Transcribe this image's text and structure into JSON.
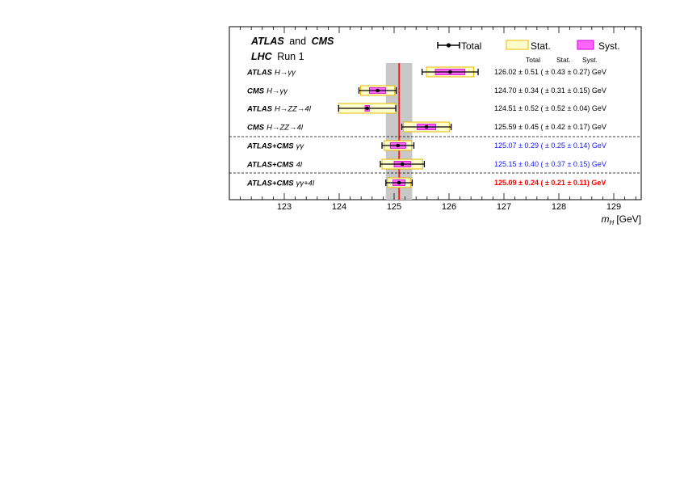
{
  "chart_data": {
    "type": "scatter",
    "title_bold_1": "ATLAS",
    "title_and": "and",
    "title_bold_2": "CMS",
    "subtitle_bold": "LHC",
    "subtitle_rest": "Run 1",
    "xlabel": "m",
    "xlabel_sub": "H",
    "xlabel_unit": "[GeV]",
    "xlim": [
      122.0,
      129.5
    ],
    "xticks": [
      123,
      124,
      125,
      126,
      127,
      128,
      129
    ],
    "combined_value": 125.09,
    "combined_total_band": [
      124.85,
      125.33
    ],
    "legend": {
      "total": "Total",
      "stat": "Stat.",
      "syst": "Syst."
    },
    "column_headers": {
      "total": "Total",
      "stat": "Stat.",
      "syst": "Syst."
    },
    "colors": {
      "stat_fill": "#ffffcc",
      "stat_border": "#e6b800",
      "syst_fill": "#ff66ff",
      "syst_border": "#cc00cc",
      "band": "#c8c8c8",
      "line": "#ff0000",
      "blue": "#1a1aff",
      "red": "#ff0000"
    },
    "rows": [
      {
        "label_bold": "ATLAS",
        "label_rest": "H→γγ",
        "value": 126.02,
        "total": 0.51,
        "stat": 0.43,
        "syst": 0.27,
        "text": "126.02 ± 0.51 ( ± 0.43 ± 0.27) GeV",
        "style": "normal"
      },
      {
        "label_bold": "CMS",
        "label_rest": "H→γγ",
        "value": 124.7,
        "total": 0.34,
        "stat": 0.31,
        "syst": 0.15,
        "text": "124.70 ± 0.34 ( ± 0.31 ± 0.15) GeV",
        "style": "normal"
      },
      {
        "label_bold": "ATLAS",
        "label_rest": "H→ZZ→4l",
        "value": 124.51,
        "total": 0.52,
        "stat": 0.52,
        "syst": 0.04,
        "text": "124.51 ± 0.52 ( ± 0.52 ± 0.04) GeV",
        "style": "normal"
      },
      {
        "label_bold": "CMS",
        "label_rest": "H→ZZ→4l",
        "value": 125.59,
        "total": 0.45,
        "stat": 0.42,
        "syst": 0.17,
        "text": "125.59 ± 0.45 ( ± 0.42 ± 0.17) GeV",
        "style": "normal"
      },
      {
        "label_bold": "ATLAS+CMS",
        "label_rest": "γγ",
        "value": 125.07,
        "total": 0.29,
        "stat": 0.25,
        "syst": 0.14,
        "text": "125.07 ± 0.29 ( ± 0.25 ± 0.14) GeV",
        "style": "blue"
      },
      {
        "label_bold": "ATLAS+CMS",
        "label_rest": "4l",
        "value": 125.15,
        "total": 0.4,
        "stat": 0.37,
        "syst": 0.15,
        "text": "125.15 ± 0.40 ( ± 0.37 ± 0.15) GeV",
        "style": "blue"
      },
      {
        "label_bold": "ATLAS+CMS",
        "label_rest": "γγ+4l",
        "value": 125.09,
        "total": 0.24,
        "stat": 0.21,
        "syst": 0.11,
        "text": "125.09 ± 0.24 ( ± 0.21 ± 0.11) GeV",
        "style": "red"
      }
    ]
  }
}
